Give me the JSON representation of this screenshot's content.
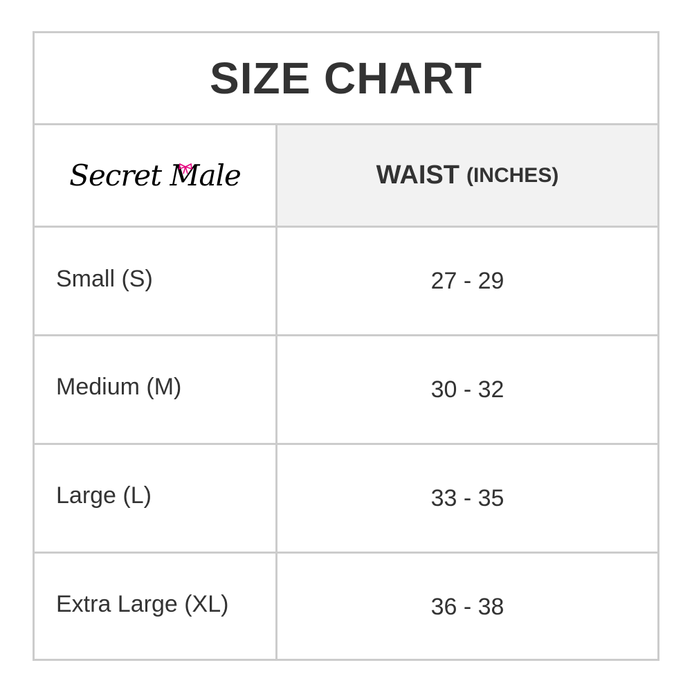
{
  "title": "SIZE CHART",
  "brand": "Secret Male",
  "header": {
    "label": "WAIST",
    "unit": "(INCHES)"
  },
  "rows": [
    {
      "size": "Small (S)",
      "waist": "27 - 29"
    },
    {
      "size": "Medium (M)",
      "waist": "30 - 32"
    },
    {
      "size": "Large (L)",
      "waist": "33 - 35"
    },
    {
      "size": "Extra Large (XL)",
      "waist": "36 - 38"
    }
  ],
  "colors": {
    "border": "#cccccc",
    "header_bg": "#f2f2f2",
    "text": "#333333",
    "bow": "#e6007e"
  }
}
